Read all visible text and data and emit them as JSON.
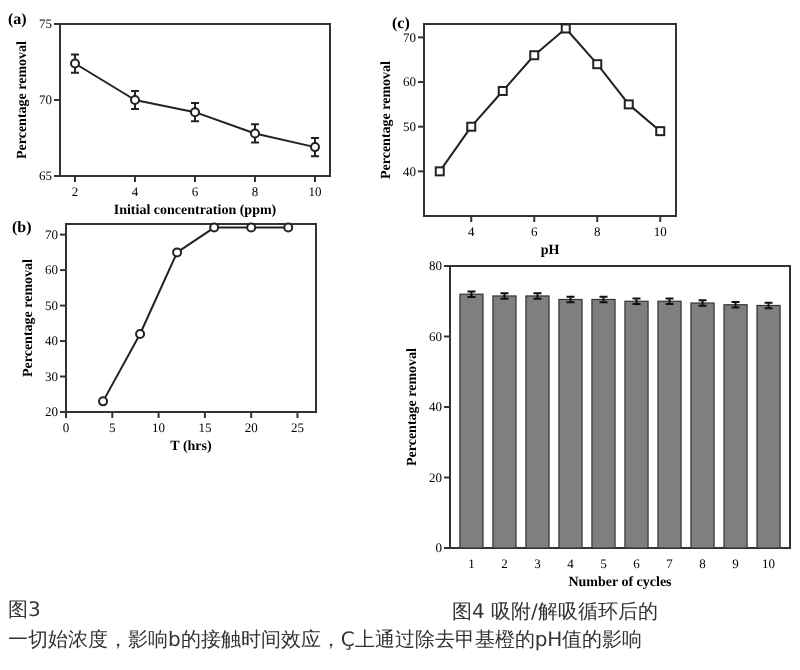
{
  "chart_data": [
    {
      "type": "line",
      "title": "(a)",
      "xlabel": "Initial concentration (ppm)",
      "ylabel": "Percentage removal",
      "x": [
        2,
        4,
        6,
        8,
        10
      ],
      "values": [
        72.4,
        70,
        69.2,
        67.8,
        66.9
      ],
      "errors": [
        0.6,
        0.6,
        0.6,
        0.6,
        0.6
      ],
      "color": "#222222",
      "marker": "circle",
      "xlim": [
        1.5,
        10.5
      ],
      "ylim": [
        65,
        75
      ],
      "xticks": [
        2,
        4,
        6,
        8,
        10
      ],
      "yticks": [
        65,
        70,
        75
      ]
    },
    {
      "type": "line",
      "title": "(c)",
      "xlabel": "pH",
      "ylabel": "Percentage removal",
      "x": [
        3,
        4,
        5,
        6,
        7,
        8,
        9,
        10
      ],
      "values": [
        40,
        50,
        58,
        66,
        72,
        64,
        55,
        49
      ],
      "color": "#222222",
      "marker": "square",
      "xlim": [
        2.5,
        10.5
      ],
      "ylim": [
        30,
        73
      ],
      "xticks": [
        4,
        6,
        8,
        10
      ],
      "yticks": [
        40,
        50,
        60,
        70
      ]
    },
    {
      "type": "line",
      "title": "(b)",
      "xlabel": "T (hrs)",
      "ylabel": "Percentage removal",
      "x": [
        4,
        8,
        12,
        16,
        20,
        24
      ],
      "values": [
        23,
        42,
        65,
        72,
        72,
        72
      ],
      "color": "#222222",
      "marker": "circle",
      "xlim": [
        0,
        27
      ],
      "ylim": [
        20,
        73
      ],
      "xticks": [
        0,
        5,
        10,
        15,
        20,
        25
      ],
      "yticks": [
        20,
        30,
        40,
        50,
        60,
        70
      ],
      "annotations": [
        "图3",
        "一切始浓度，影响b的接触时间效应，Ç上通过除去甲基橙的pH值的影响"
      ]
    },
    {
      "type": "bar",
      "xlabel": "Number of cycles",
      "ylabel": "Percentage removal",
      "categories": [
        "1",
        "2",
        "3",
        "4",
        "5",
        "6",
        "7",
        "8",
        "9",
        "10"
      ],
      "values": [
        72,
        71.5,
        71.5,
        70.5,
        70.5,
        70,
        70,
        69.5,
        69,
        68.8
      ],
      "errors": [
        0.8,
        0.8,
        0.8,
        0.8,
        0.8,
        0.8,
        0.8,
        0.8,
        0.8,
        0.8
      ],
      "color": "#7f7f7f",
      "ylim": [
        0,
        80
      ],
      "yticks": [
        0,
        20,
        40,
        60,
        80
      ],
      "annotations": [
        "图4 吸附/解吸循环后的"
      ]
    }
  ]
}
